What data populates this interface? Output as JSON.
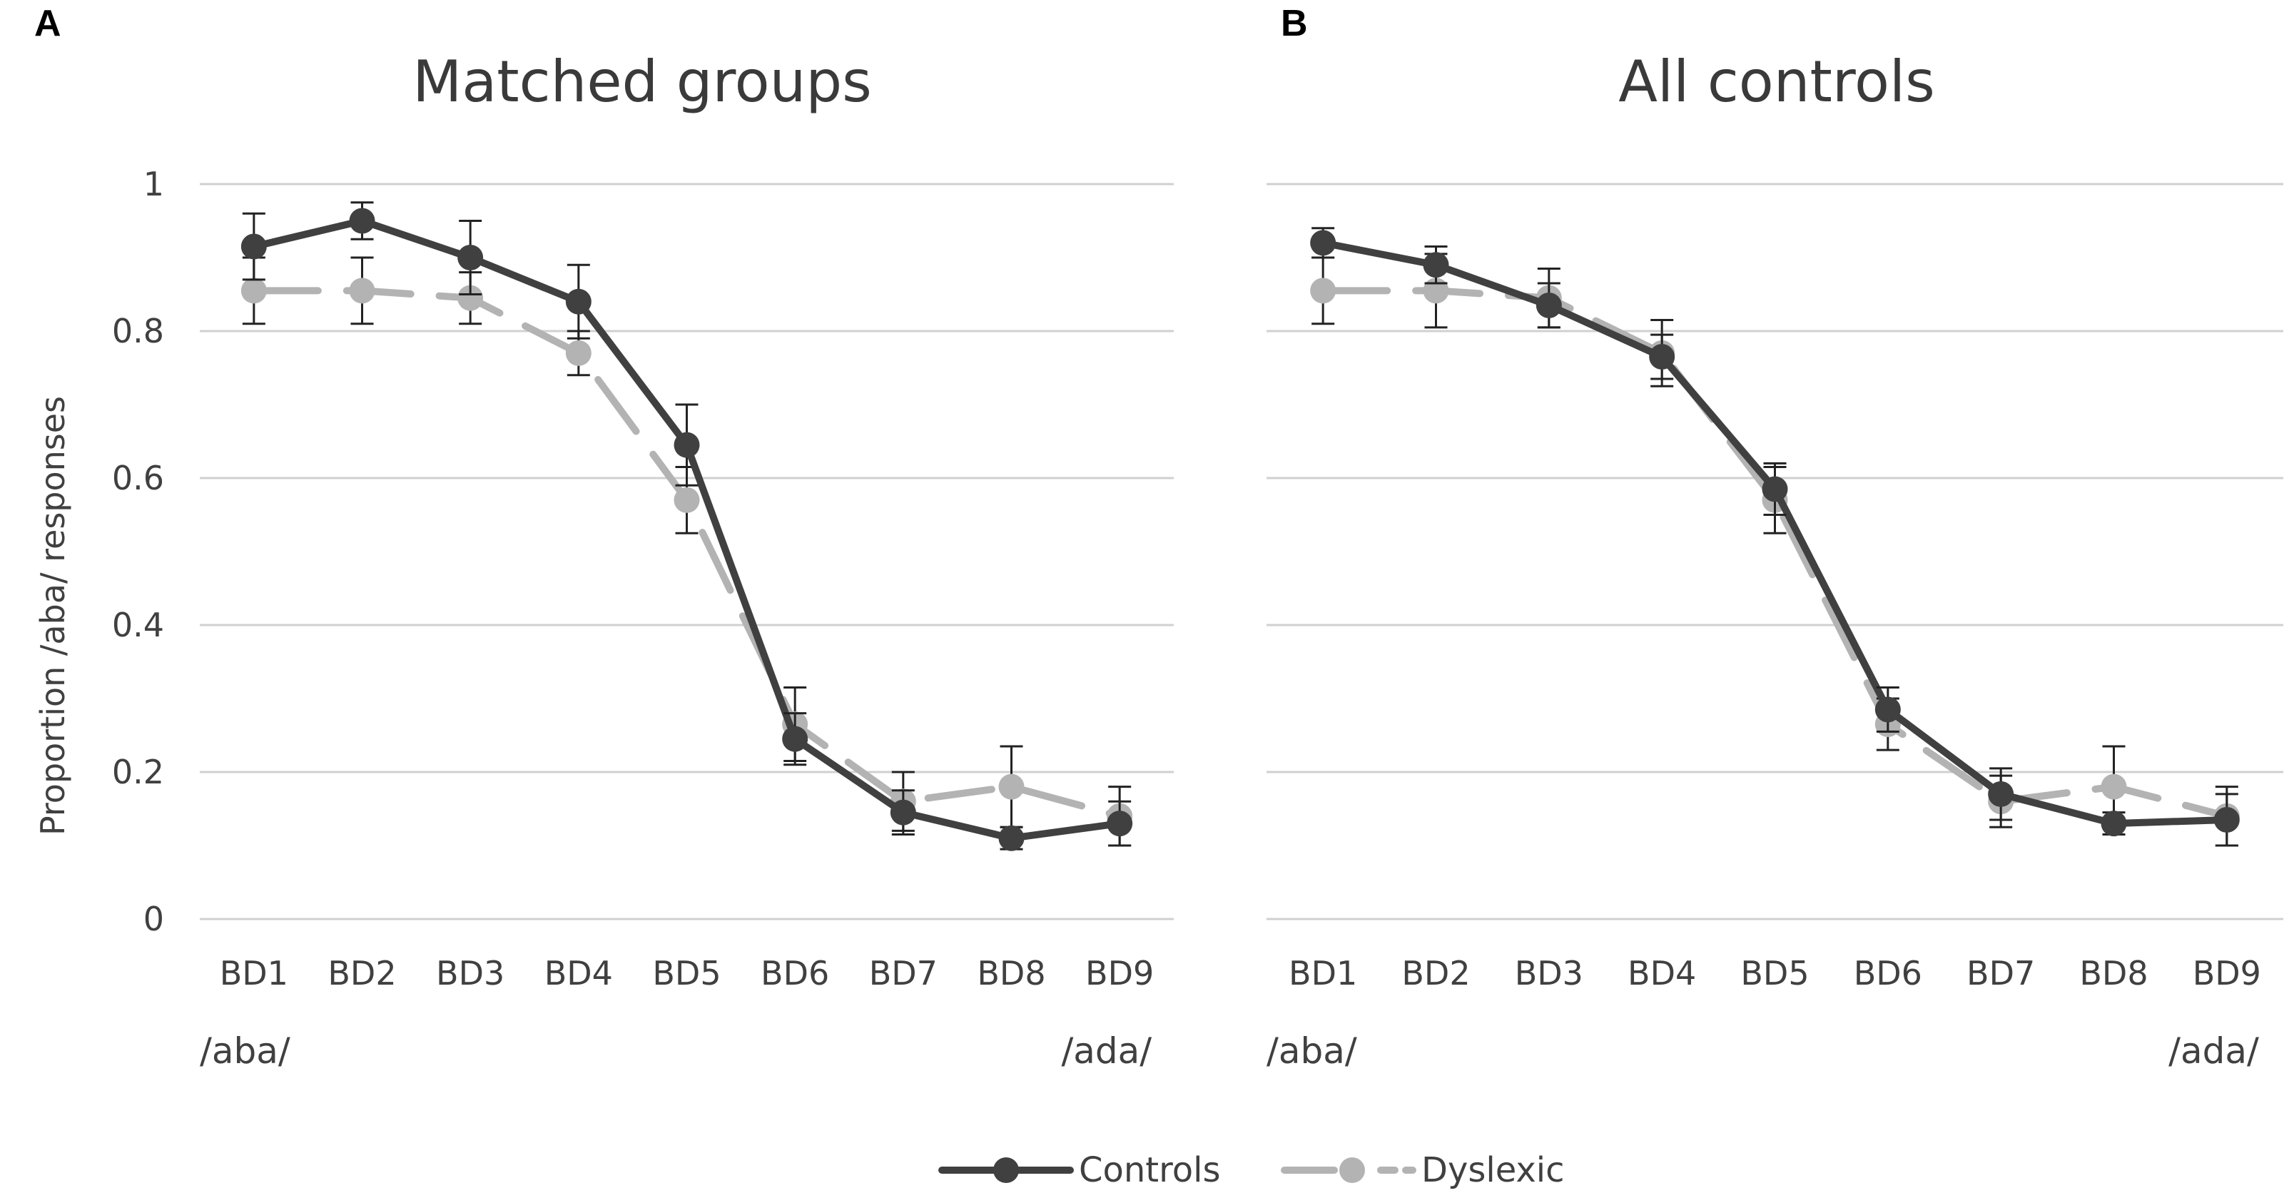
{
  "figure": {
    "legend": {
      "controls": "Controls",
      "dyslexic": "Dyslexic"
    }
  },
  "colors": {
    "controls": "#404040",
    "dyslexic": "#b3b3b3",
    "grid": "#d0d0d0",
    "text": "#404040"
  },
  "chart_data": [
    {
      "panel": "A",
      "type": "line",
      "title": "Matched groups",
      "ylabel": "Proportion /aba/ responses",
      "xlabel": "",
      "ylim": [
        0,
        1
      ],
      "yticks": [
        0,
        0.2,
        0.4,
        0.6,
        0.8,
        1
      ],
      "ytick_labels": [
        "0",
        "0.2",
        "0.4",
        "0.6",
        "0.8",
        "1"
      ],
      "categories": [
        "BD1",
        "BD2",
        "BD3",
        "BD4",
        "BD5",
        "BD6",
        "BD7",
        "BD8",
        "BD9"
      ],
      "end_labels": {
        "left": "/aba/",
        "right": "/ada/"
      },
      "grid": true,
      "legend_position": "bottom-center",
      "series": [
        {
          "name": "Controls",
          "values": [
            0.915,
            0.95,
            0.9,
            0.84,
            0.645,
            0.245,
            0.145,
            0.11,
            0.13
          ],
          "errors": [
            0.045,
            0.025,
            0.05,
            0.05,
            0.055,
            0.035,
            0.03,
            0.015,
            0.03
          ]
        },
        {
          "name": "Dyslexic",
          "values": [
            0.855,
            0.855,
            0.845,
            0.77,
            0.57,
            0.265,
            0.16,
            0.18,
            0.14
          ],
          "errors": [
            0.045,
            0.045,
            0.035,
            0.03,
            0.045,
            0.05,
            0.04,
            0.055,
            0.04
          ]
        }
      ]
    },
    {
      "panel": "B",
      "type": "line",
      "title": "All controls",
      "ylabel": "",
      "xlabel": "",
      "ylim": [
        0,
        1
      ],
      "yticks": [
        0,
        0.2,
        0.4,
        0.6,
        0.8,
        1
      ],
      "categories": [
        "BD1",
        "BD2",
        "BD3",
        "BD4",
        "BD5",
        "BD6",
        "BD7",
        "BD8",
        "BD9"
      ],
      "end_labels": {
        "left": "/aba/",
        "right": "/ada/"
      },
      "grid": true,
      "series": [
        {
          "name": "Controls",
          "values": [
            0.92,
            0.89,
            0.835,
            0.765,
            0.585,
            0.285,
            0.17,
            0.13,
            0.135
          ],
          "errors": [
            0.02,
            0.025,
            0.03,
            0.03,
            0.035,
            0.03,
            0.035,
            0.015,
            0.035
          ]
        },
        {
          "name": "Dyslexic",
          "values": [
            0.855,
            0.855,
            0.845,
            0.77,
            0.57,
            0.265,
            0.16,
            0.18,
            0.14
          ],
          "errors": [
            0.045,
            0.05,
            0.04,
            0.045,
            0.045,
            0.035,
            0.035,
            0.055,
            0.04
          ]
        }
      ]
    }
  ]
}
